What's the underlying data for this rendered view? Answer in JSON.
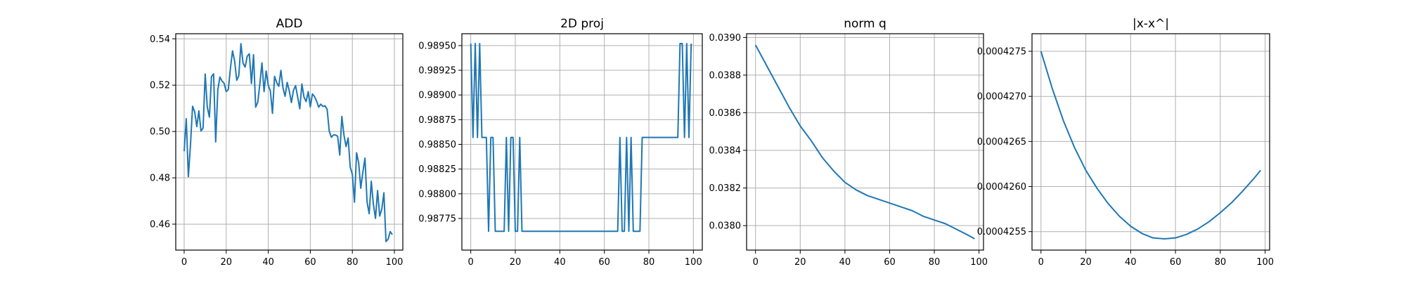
{
  "figure_title": "",
  "chart_data": [
    {
      "type": "line",
      "title": "ADD",
      "xlabel": "",
      "ylabel": "",
      "xlim": [
        -4,
        104
      ],
      "ylim": [
        0.4488,
        0.5422
      ],
      "xticks": [
        0,
        20,
        40,
        60,
        80,
        100
      ],
      "yticks": [
        0.46,
        0.48,
        0.5,
        0.52,
        0.54
      ],
      "ytick_labels": [
        "0.46",
        "0.48",
        "0.50",
        "0.52",
        "0.54"
      ],
      "grid": true,
      "series": [
        {
          "color": "#1f77b4",
          "x": [
            0,
            1,
            2,
            3,
            4,
            5,
            6,
            7,
            8,
            9,
            10,
            11,
            12,
            13,
            14,
            15,
            16,
            17,
            18,
            19,
            20,
            21,
            22,
            23,
            24,
            25,
            26,
            27,
            28,
            29,
            30,
            31,
            32,
            33,
            34,
            35,
            36,
            37,
            38,
            39,
            40,
            41,
            42,
            43,
            44,
            45,
            46,
            47,
            48,
            49,
            50,
            51,
            52,
            53,
            54,
            55,
            56,
            57,
            58,
            59,
            60,
            61,
            62,
            63,
            64,
            65,
            66,
            67,
            68,
            69,
            70,
            71,
            72,
            73,
            74,
            75,
            76,
            77,
            78,
            79,
            80,
            81,
            82,
            83,
            84,
            85,
            86,
            87,
            88,
            89,
            90,
            91,
            92,
            93,
            94,
            95,
            96,
            97,
            98,
            99
          ],
          "values": [
            0.4915,
            0.5055,
            0.4805,
            0.4942,
            0.5109,
            0.5085,
            0.5021,
            0.5089,
            0.5002,
            0.5015,
            0.5248,
            0.5105,
            0.5062,
            0.5237,
            0.5249,
            0.4955,
            0.5179,
            0.5235,
            0.5218,
            0.5208,
            0.5172,
            0.5181,
            0.5272,
            0.5348,
            0.5305,
            0.5221,
            0.5241,
            0.5379,
            0.5295,
            0.5278,
            0.5325,
            0.5335,
            0.5207,
            0.5331,
            0.5105,
            0.5126,
            0.5205,
            0.5296,
            0.5172,
            0.5261,
            0.5199,
            0.5175,
            0.5078,
            0.5238,
            0.5211,
            0.5195,
            0.5264,
            0.5188,
            0.5152,
            0.5212,
            0.5175,
            0.5125,
            0.5178,
            0.5198,
            0.5148,
            0.5098,
            0.5205,
            0.5148,
            0.5129,
            0.5172,
            0.5106,
            0.5162,
            0.5151,
            0.5131,
            0.5105,
            0.5118,
            0.5108,
            0.5111,
            0.5096,
            0.5002,
            0.4975,
            0.4985,
            0.4985,
            0.4979,
            0.4898,
            0.5065,
            0.4985,
            0.4935,
            0.4972,
            0.4845,
            0.4815,
            0.4695,
            0.4908,
            0.4865,
            0.4755,
            0.4825,
            0.4885,
            0.4695,
            0.4645,
            0.4785,
            0.4685,
            0.4625,
            0.4745,
            0.4635,
            0.4665,
            0.4735,
            0.4525,
            0.4535,
            0.4568,
            0.4555
          ]
        }
      ]
    },
    {
      "type": "line",
      "title": "2D proj",
      "xlabel": "",
      "ylabel": "",
      "xlim": [
        -4,
        104
      ],
      "ylim": [
        0.98743,
        0.98962
      ],
      "xticks": [
        0,
        20,
        40,
        60,
        80,
        100
      ],
      "yticks": [
        0.98775,
        0.988,
        0.98825,
        0.9885,
        0.98875,
        0.989,
        0.98925,
        0.9895
      ],
      "ytick_labels": [
        "0.98775",
        "0.98800",
        "0.98825",
        "0.98850",
        "0.98875",
        "0.98900",
        "0.98925",
        "0.98950"
      ],
      "grid": true,
      "series": [
        {
          "color": "#1f77b4",
          "x": [
            0,
            1,
            2,
            3,
            4,
            5,
            6,
            7,
            8,
            9,
            10,
            11,
            12,
            13,
            14,
            15,
            16,
            17,
            18,
            19,
            20,
            21,
            22,
            23,
            24,
            25,
            26,
            27,
            28,
            29,
            30,
            31,
            32,
            33,
            34,
            35,
            36,
            37,
            38,
            39,
            40,
            41,
            42,
            43,
            44,
            45,
            46,
            47,
            48,
            49,
            50,
            51,
            52,
            53,
            54,
            55,
            56,
            57,
            58,
            59,
            60,
            61,
            62,
            63,
            64,
            65,
            66,
            67,
            68,
            69,
            70,
            71,
            72,
            73,
            74,
            75,
            76,
            77,
            78,
            79,
            80,
            81,
            82,
            83,
            84,
            85,
            86,
            87,
            88,
            89,
            90,
            91,
            92,
            93,
            94,
            95,
            96,
            97,
            98,
            99
          ],
          "values": [
            0.98952,
            0.98857,
            0.98952,
            0.98857,
            0.98952,
            0.98857,
            0.98857,
            0.98857,
            0.98762,
            0.98857,
            0.98857,
            0.98762,
            0.98762,
            0.98762,
            0.98762,
            0.98762,
            0.98857,
            0.98762,
            0.98857,
            0.98857,
            0.98762,
            0.98762,
            0.98857,
            0.98762,
            0.98762,
            0.98762,
            0.98762,
            0.98762,
            0.98762,
            0.98762,
            0.98762,
            0.98762,
            0.98762,
            0.98762,
            0.98762,
            0.98762,
            0.98762,
            0.98762,
            0.98762,
            0.98762,
            0.98762,
            0.98762,
            0.98762,
            0.98762,
            0.98762,
            0.98762,
            0.98762,
            0.98762,
            0.98762,
            0.98762,
            0.98762,
            0.98762,
            0.98762,
            0.98762,
            0.98762,
            0.98762,
            0.98762,
            0.98762,
            0.98762,
            0.98762,
            0.98762,
            0.98762,
            0.98762,
            0.98762,
            0.98762,
            0.98762,
            0.98762,
            0.98857,
            0.98762,
            0.98762,
            0.98857,
            0.98762,
            0.98857,
            0.98762,
            0.98762,
            0.98762,
            0.98762,
            0.98857,
            0.98857,
            0.98857,
            0.98857,
            0.98857,
            0.98857,
            0.98857,
            0.98857,
            0.98857,
            0.98857,
            0.98857,
            0.98857,
            0.98857,
            0.98857,
            0.98857,
            0.98857,
            0.98857,
            0.98952,
            0.98952,
            0.98857,
            0.98952,
            0.98857,
            0.98952
          ]
        }
      ]
    },
    {
      "type": "line",
      "title": "norm q",
      "xlabel": "",
      "ylabel": "",
      "xlim": [
        -4,
        102
      ],
      "ylim": [
        0.03787,
        0.03902
      ],
      "xticks": [
        0,
        20,
        40,
        60,
        80,
        100
      ],
      "yticks": [
        0.038,
        0.0382,
        0.0384,
        0.0386,
        0.0388,
        0.039
      ],
      "ytick_labels": [
        "0.0380",
        "0.0382",
        "0.0384",
        "0.0386",
        "0.0388",
        "0.0390"
      ],
      "grid": true,
      "series": [
        {
          "color": "#1f77b4",
          "x": [
            0,
            5,
            10,
            15,
            20,
            25,
            30,
            35,
            40,
            45,
            50,
            55,
            60,
            65,
            70,
            75,
            80,
            85,
            90,
            95,
            98
          ],
          "values": [
            0.03896,
            0.03885,
            0.03874,
            0.03863,
            0.03853,
            0.03845,
            0.03836,
            0.03829,
            0.03823,
            0.03819,
            0.03816,
            0.03814,
            0.03812,
            0.0381,
            0.03808,
            0.03805,
            0.03803,
            0.03801,
            0.03798,
            0.03795,
            0.03793
          ]
        }
      ]
    },
    {
      "type": "line",
      "title": "|x-x^|",
      "xlabel": "",
      "ylabel": "",
      "xlim": [
        -4,
        102
      ],
      "ylim": [
        0.000425295,
        0.000427695
      ],
      "xticks": [
        0,
        20,
        40,
        60,
        80,
        100
      ],
      "yticks": [
        0.0004255,
        0.000426,
        0.0004265,
        0.000427,
        0.0004275
      ],
      "ytick_labels": [
        "0.0004255",
        "0.0004260",
        "0.0004265",
        "0.0004270",
        "0.0004275"
      ],
      "grid": true,
      "series": [
        {
          "color": "#1f77b4",
          "x": [
            0,
            5,
            10,
            15,
            20,
            25,
            30,
            35,
            40,
            45,
            50,
            55,
            60,
            65,
            70,
            75,
            80,
            85,
            90,
            95,
            98
          ],
          "values": [
            0.0004275,
            0.00042709,
            0.00042673,
            0.00042643,
            0.00042618,
            0.00042598,
            0.00042581,
            0.00042567,
            0.00042556,
            0.00042548,
            0.00042543,
            0.00042542,
            0.00042543,
            0.00042547,
            0.00042553,
            0.00042561,
            0.00042571,
            0.00042582,
            0.00042595,
            0.00042609,
            0.00042618
          ]
        }
      ]
    }
  ]
}
